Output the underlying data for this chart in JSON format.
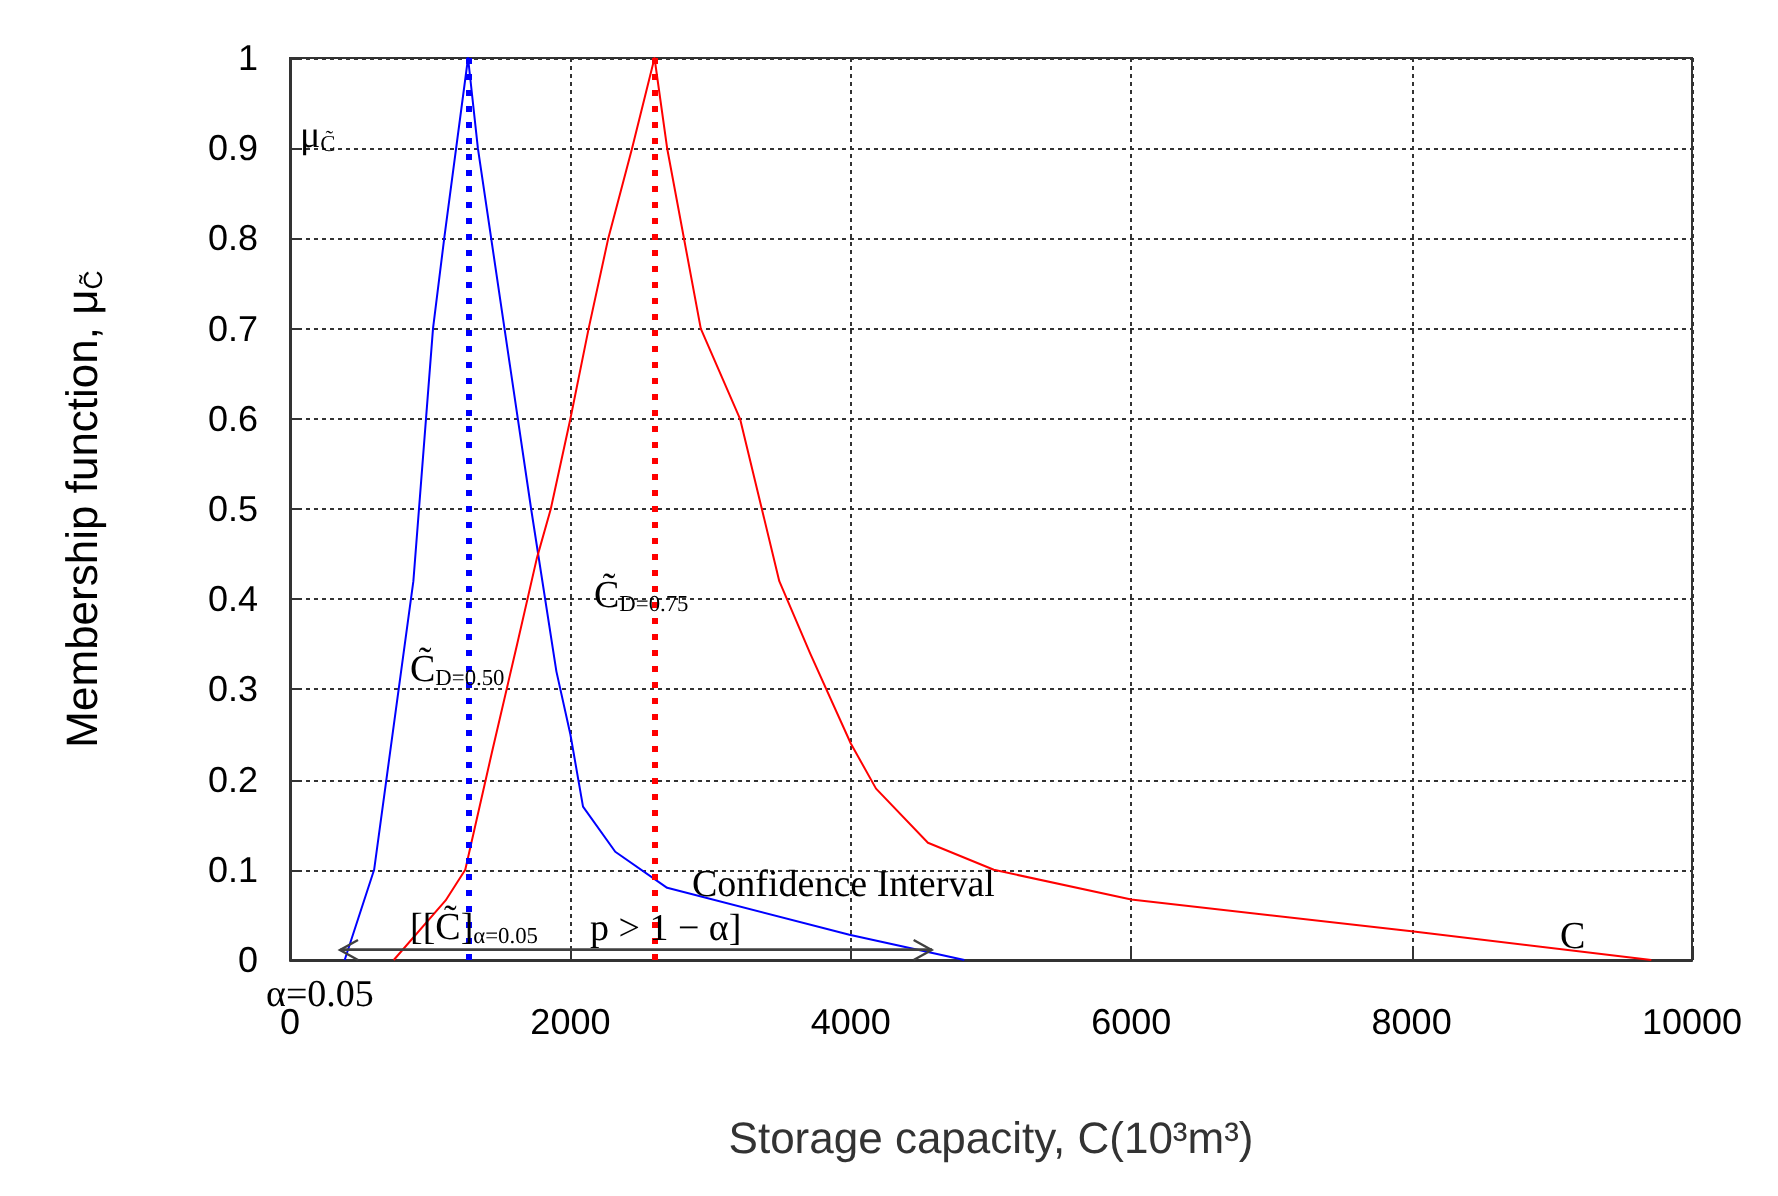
{
  "chart_data": {
    "type": "line",
    "xlabel": "Storage capacity, C(10³m³)",
    "ylabel": "Membership function, μ$_{C̃}$",
    "xlim": [
      0,
      10000
    ],
    "xticks": [
      0,
      2000,
      4000,
      6000,
      8000,
      10000
    ],
    "ylim": [
      0,
      1
    ],
    "yticks": [
      0,
      0.1,
      0.2,
      0.3,
      0.4,
      0.5,
      0.6,
      0.7,
      0.8,
      0.9,
      1
    ],
    "grid": true,
    "line_style": "solid",
    "series": [
      {
        "color": "#0000ff",
        "x": [
          390,
          600,
          880,
          1020,
          1100,
          1270,
          1340,
          1530,
          1720,
          1900,
          2000,
          2090,
          2320,
          2690,
          3990,
          4810
        ],
        "values": [
          0,
          0.1,
          0.42,
          0.7,
          0.8,
          1,
          0.9,
          0.7,
          0.5,
          0.32,
          0.25,
          0.17,
          0.12,
          0.08,
          0.028,
          0
        ]
      },
      {
        "color": "#ff0000",
        "x": [
          740,
          1110,
          1250,
          1440,
          1620,
          1760,
          1860,
          2000,
          2130,
          2270,
          2440,
          2600,
          2690,
          2930,
          3210,
          3490,
          3710,
          4000,
          4180,
          4550,
          5020,
          6000,
          8000,
          9710
        ],
        "values": [
          0,
          0.066,
          0.1,
          0.23,
          0.35,
          0.445,
          0.5,
          0.6,
          0.7,
          0.8,
          0.9,
          1,
          0.9,
          0.7,
          0.6,
          0.42,
          0.34,
          0.24,
          0.19,
          0.13,
          0.1,
          0.067,
          0.032,
          0
        ]
      },
      {
        "color": "#404040",
        "x": [
          360,
          4580
        ],
        "values": [
          0.012,
          0.012
        ]
      }
    ],
    "ref_lines": [
      {
        "axis": "x",
        "value": 1270,
        "color": "#0000ff",
        "line_style": "dotted"
      },
      {
        "axis": "x",
        "value": 2600,
        "color": "#ff0000",
        "line_style": "dotted"
      }
    ],
    "annotations": [
      "μ$_{C̃}$",
      "C̃$_{D=0.75}$",
      "C̃$_{D=0.50}$",
      "Confidence Interval",
      "[[C̃]$_{α=0.05}$",
      "p > 1 − α]",
      "α=0.05",
      "C"
    ]
  }
}
